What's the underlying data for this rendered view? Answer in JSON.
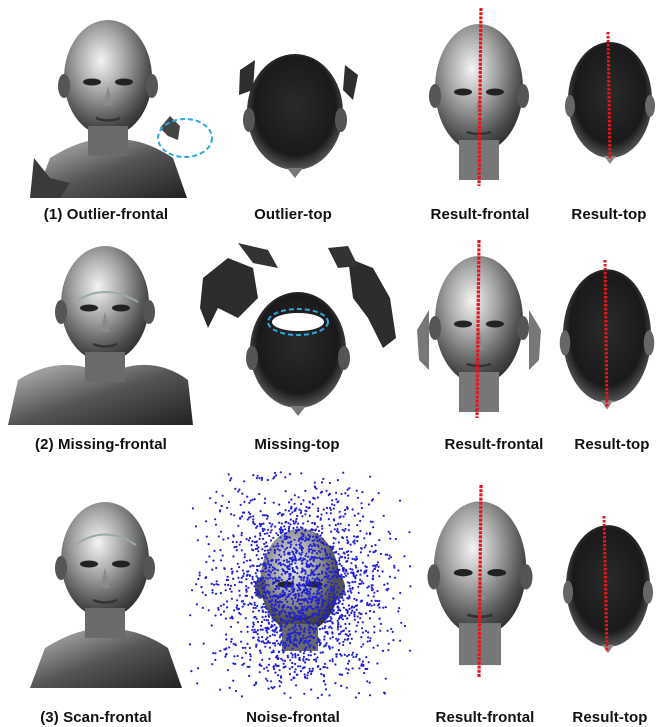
{
  "figure": {
    "rows": [
      {
        "captions": [
          "(1) Outlier-frontal",
          "Outlier-top",
          "Result-frontal",
          "Result-top"
        ],
        "highlight": "outlier-region",
        "symmetry_line_color": "#e8141b"
      },
      {
        "captions": [
          "(2) Missing-frontal",
          "Missing-top",
          "Result-frontal",
          "Result-top"
        ],
        "highlight": "missing-region",
        "symmetry_line_color": "#e8141b"
      },
      {
        "captions": [
          "(3) Scan-frontal",
          "Noise-frontal",
          "Result-frontal",
          "Result-top"
        ],
        "noise_point_color": "#1f1fd6",
        "symmetry_line_color": "#e8141b"
      }
    ],
    "highlight_color": "#2aa8e0",
    "icons": [
      "face-scan-frontal",
      "head-scan-top",
      "symmetry-plane-line",
      "dashed-ellipse",
      "noise-point-cloud"
    ]
  }
}
